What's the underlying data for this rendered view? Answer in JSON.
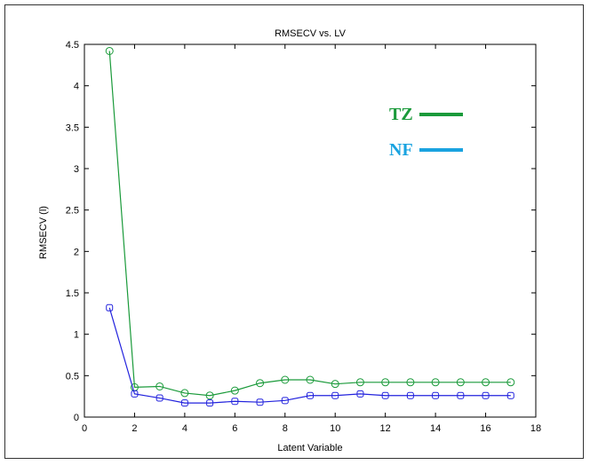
{
  "chart_data": {
    "type": "line",
    "title": "RMSECV vs. LV",
    "xlabel": "Latent Variable",
    "ylabel": "RMSECV (l)",
    "xlim": [
      0,
      18
    ],
    "ylim": [
      0,
      4.5
    ],
    "xticks": [
      0,
      2,
      4,
      6,
      8,
      10,
      12,
      14,
      16,
      18
    ],
    "yticks": [
      0,
      0.5,
      1,
      1.5,
      2,
      2.5,
      3,
      3.5,
      4,
      4.5
    ],
    "x": [
      1,
      2,
      3,
      4,
      5,
      6,
      7,
      8,
      9,
      10,
      11,
      12,
      13,
      14,
      15,
      16,
      17
    ],
    "series": [
      {
        "name": "TZ",
        "color": "#1a9a3a",
        "marker": "circle",
        "values": [
          4.42,
          0.36,
          0.37,
          0.29,
          0.26,
          0.32,
          0.41,
          0.45,
          0.45,
          0.4,
          0.42,
          0.42,
          0.42,
          0.42,
          0.42,
          0.42,
          0.42
        ]
      },
      {
        "name": "NF",
        "color": "#2222dd",
        "legend_color": "#1aa3e0",
        "marker": "square",
        "values": [
          1.32,
          0.28,
          0.23,
          0.17,
          0.17,
          0.19,
          0.18,
          0.2,
          0.26,
          0.26,
          0.28,
          0.26,
          0.26,
          0.26,
          0.26,
          0.26,
          0.26
        ]
      }
    ],
    "legend_position": "top-right",
    "grid": false
  }
}
